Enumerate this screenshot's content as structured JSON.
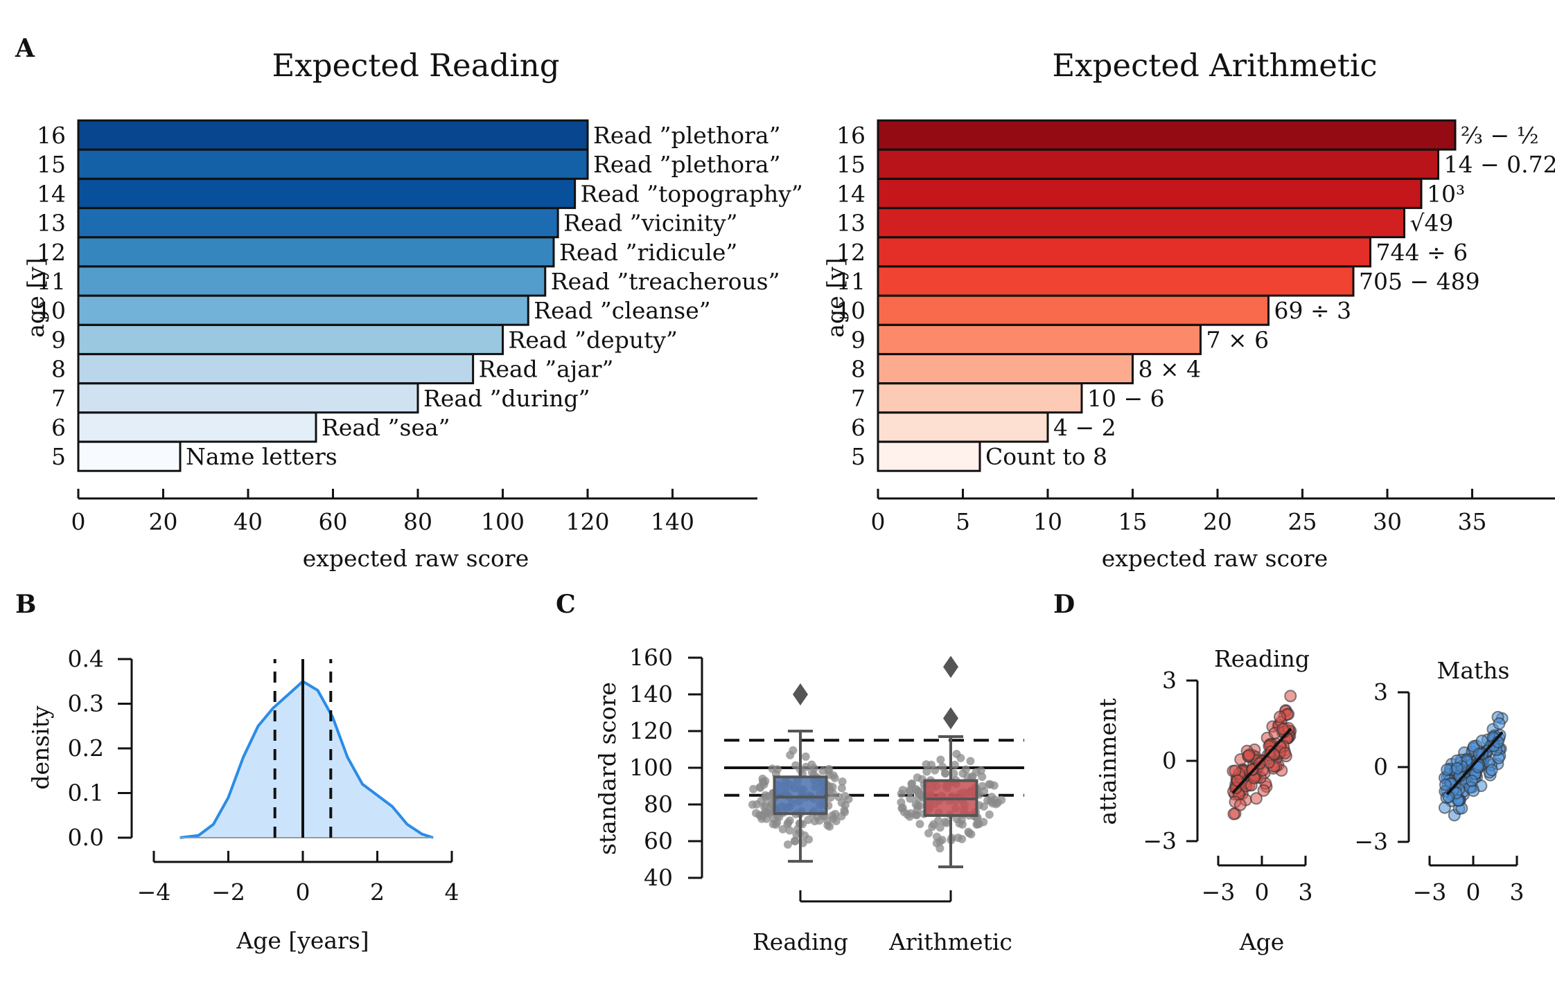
{
  "panels": {
    "A": "A",
    "B": "B",
    "C": "C",
    "D": "D"
  },
  "chart_data": [
    {
      "id": "reading",
      "type": "bar",
      "orientation": "horizontal",
      "title": "Expected Reading",
      "xlabel": "expected raw score",
      "ylabel": "age [y]",
      "xlim": [
        0,
        160
      ],
      "xticks": [
        0,
        20,
        40,
        60,
        80,
        100,
        120,
        140
      ],
      "colors": [
        "#f7fbff",
        "#e3eef9",
        "#d0e2f2",
        "#bad6eb",
        "#9ac8e0",
        "#73b2d8",
        "#529dcc",
        "#3585bf",
        "#1d6cb1",
        "#08509b",
        "#1461a8",
        "#08468f"
      ],
      "categories": [
        "5",
        "6",
        "7",
        "8",
        "9",
        "10",
        "11",
        "12",
        "13",
        "14",
        "15",
        "16"
      ],
      "values": [
        24,
        56,
        80,
        93,
        100,
        106,
        110,
        112,
        113,
        117,
        120,
        120
      ],
      "labels": [
        "Name letters",
        "Read ”sea”",
        "Read ”during”",
        "Read ”ajar”",
        "Read ”deputy”",
        "Read ”cleanse”",
        "Read ”treacherous”",
        "Read ”ridicule”",
        "Read ”vicinity”",
        "Read ”topography”",
        "Read ”plethora”",
        "Read ”plethora”"
      ]
    },
    {
      "id": "arithmetic",
      "type": "bar",
      "orientation": "horizontal",
      "title": "Expected Arithmetic",
      "xlabel": "expected raw score",
      "ylabel": "age [y]",
      "xlim": [
        0,
        40
      ],
      "xticks": [
        0,
        5,
        10,
        15,
        20,
        25,
        30,
        35
      ],
      "colors": [
        "#fff1eb",
        "#fee0d2",
        "#fdcab5",
        "#fcab8f",
        "#fc8a6a",
        "#f9694c",
        "#f14331",
        "#e32f27",
        "#d21f20",
        "#c5161b",
        "#b81419",
        "#940b13"
      ],
      "categories": [
        "5",
        "6",
        "7",
        "8",
        "9",
        "10",
        "11",
        "12",
        "13",
        "14",
        "15",
        "16"
      ],
      "values": [
        6,
        10,
        12,
        15,
        19,
        23,
        28,
        29,
        31,
        32,
        33,
        34
      ],
      "labels": [
        "Count to 8",
        "4 − 2",
        "10 − 6",
        "8 × 4",
        "7 × 6",
        "69 ÷ 3",
        "705 − 489",
        "744 ÷ 6",
        "√49",
        "10³",
        "14 − 0.72",
        "⅔ − ½"
      ]
    },
    {
      "id": "age-density",
      "type": "area",
      "xlabel": "Age [years]",
      "ylabel": "density",
      "xlim": [
        -4,
        4
      ],
      "ylim": [
        0,
        0.4
      ],
      "xticks": [
        "−4",
        "−2",
        "0",
        "2",
        "4"
      ],
      "yticks": [
        "0.0",
        "0.1",
        "0.2",
        "0.3",
        "0.4"
      ],
      "x": [
        -3.3,
        -2.8,
        -2.4,
        -2.0,
        -1.6,
        -1.2,
        -0.8,
        -0.4,
        0.0,
        0.4,
        0.8,
        1.2,
        1.6,
        2.0,
        2.4,
        2.8,
        3.2,
        3.5
      ],
      "y": [
        0.0,
        0.005,
        0.03,
        0.09,
        0.18,
        0.25,
        0.29,
        0.32,
        0.35,
        0.33,
        0.27,
        0.18,
        0.12,
        0.095,
        0.07,
        0.03,
        0.008,
        0.0
      ],
      "solid_line_x": 0,
      "dashed_lines_x": [
        -0.75,
        0.75
      ],
      "color": "#2b8ce6",
      "fill": "#cce4fb"
    },
    {
      "id": "standard-scores",
      "type": "box",
      "ylabel": "standard score",
      "ylim": [
        40,
        160
      ],
      "yticks": [
        "40",
        "60",
        "80",
        "100",
        "120",
        "140",
        "160"
      ],
      "categories": [
        "Reading",
        "Arithmetic"
      ],
      "boxes": [
        {
          "name": "Reading",
          "whisker_low": 49,
          "q1": 75,
          "median": 84,
          "q3": 95,
          "whisker_high": 120,
          "outliers": [
            140
          ],
          "color": "#4c72b0"
        },
        {
          "name": "Arithmetic",
          "whisker_low": 46,
          "q1": 74,
          "median": 83,
          "q3": 93,
          "whisker_high": 117,
          "outliers": [
            127,
            155
          ],
          "color": "#c44e52"
        }
      ],
      "solid_line_y": 100,
      "dashed_lines_y": [
        85,
        115
      ]
    },
    {
      "id": "reading-attainment",
      "type": "scatter",
      "title": "Reading",
      "xlabel": "Age",
      "ylabel": "attainment",
      "xlim": [
        -3,
        3
      ],
      "ylim": [
        -3,
        3
      ],
      "xticks": [
        "−3",
        "0",
        "3"
      ],
      "yticks": [
        "−3",
        "0",
        "3"
      ],
      "color": "#d9534f",
      "fit": {
        "x": [
          -2.0,
          2.0
        ],
        "y": [
          -1.2,
          1.2
        ]
      }
    },
    {
      "id": "maths-attainment",
      "type": "scatter",
      "title": "Maths",
      "xlabel": "",
      "ylabel": "",
      "xlim": [
        -3,
        3
      ],
      "ylim": [
        -3,
        3
      ],
      "xticks": [
        "−3",
        "0",
        "3"
      ],
      "yticks": [
        "−3",
        "0",
        "3"
      ],
      "color": "#4a90d9",
      "fit": {
        "x": [
          -1.8,
          2.0
        ],
        "y": [
          -1.1,
          1.4
        ]
      }
    }
  ]
}
